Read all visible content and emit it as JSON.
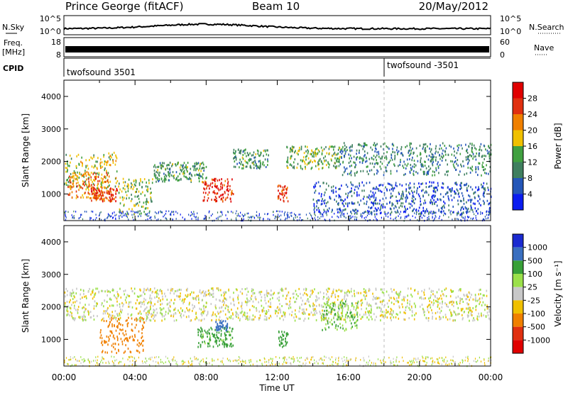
{
  "header": {
    "title": "Prince George (fitACF)",
    "beam": "Beam 10",
    "date": "20/May/2012"
  },
  "strip_labels": {
    "nsky": "N.Sky",
    "freq": "Freq.",
    "freq_unit": "[MHz]",
    "cpid": "CPID",
    "nsearch": "N.Search",
    "nave": "Nave",
    "nsky_ticks": [
      "10^5",
      "10^0"
    ],
    "nsearch_ticks": [
      "10^5",
      "10^0"
    ],
    "freq_ticks": [
      "18",
      "8"
    ],
    "nave_ticks": [
      "60",
      "0"
    ],
    "cpid_left": "twofsound 3501",
    "cpid_right": "twofsound -3501"
  },
  "colors": {
    "power": [
      "#0a1cf0",
      "#2456b8",
      "#3f7f5f",
      "#40a040",
      "#f0c000",
      "#f08000",
      "#e03010",
      "#e00000"
    ],
    "velocity": [
      "#e00000",
      "#e03010",
      "#f08000",
      "#f0c000",
      "#c8c8c8",
      "#9be04a",
      "#38a038",
      "#3a6fc0",
      "#1a2ad0"
    ]
  },
  "chart_data": [
    {
      "type": "heatmap",
      "title": "Power",
      "xlabel": "Time UT",
      "ylabel": "Slant Range [km]",
      "xlim_hours": [
        0,
        24
      ],
      "ylim_km": [
        180,
        4500
      ],
      "x_ticks": [
        "00:00",
        "04:00",
        "08:00",
        "12:00",
        "16:00",
        "20:00",
        "00:00"
      ],
      "y_ticks": [
        1000,
        2000,
        3000,
        4000
      ],
      "colorbar": {
        "label": "Power [dB]",
        "ticks": [
          4,
          8,
          12,
          16,
          20,
          24,
          28
        ]
      },
      "regions": [
        {
          "t0": 0.0,
          "t1": 3.0,
          "r0": 1200,
          "r1": 2300,
          "level": 16
        },
        {
          "t0": 0.2,
          "t1": 2.5,
          "r0": 900,
          "r1": 1700,
          "level": 22
        },
        {
          "t0": 1.5,
          "t1": 3.0,
          "r0": 800,
          "r1": 1200,
          "level": 26
        },
        {
          "t0": 3.0,
          "t1": 5.0,
          "r0": 400,
          "r1": 1500,
          "level": 14
        },
        {
          "t0": 5.0,
          "t1": 8.0,
          "r0": 1400,
          "r1": 2000,
          "level": 12
        },
        {
          "t0": 7.8,
          "t1": 9.5,
          "r0": 800,
          "r1": 1500,
          "level": 28
        },
        {
          "t0": 9.5,
          "t1": 11.5,
          "r0": 1800,
          "r1": 2400,
          "level": 12
        },
        {
          "t0": 12.0,
          "t1": 12.6,
          "r0": 800,
          "r1": 1300,
          "level": 26
        },
        {
          "t0": 12.5,
          "t1": 15.5,
          "r0": 1800,
          "r1": 2500,
          "level": 14
        },
        {
          "t0": 15.5,
          "t1": 24.0,
          "r0": 1600,
          "r1": 2600,
          "level": 10
        },
        {
          "t0": 14.0,
          "t1": 24.0,
          "r0": 400,
          "r1": 1400,
          "level": 6
        }
      ]
    },
    {
      "type": "heatmap",
      "title": "Velocity",
      "xlabel": "Time UT",
      "ylabel": "Slant Range [km]",
      "xlim_hours": [
        0,
        24
      ],
      "ylim_km": [
        180,
        4500
      ],
      "x_ticks": [
        "00:00",
        "04:00",
        "08:00",
        "12:00",
        "16:00",
        "20:00",
        "00:00"
      ],
      "y_ticks": [
        1000,
        2000,
        3000,
        4000
      ],
      "colorbar": {
        "label": "Velocity [m s⁻¹]",
        "ticks": [
          1000,
          500,
          100,
          25,
          -25,
          -100,
          -500,
          -1000
        ]
      },
      "regions": [
        {
          "t0": 0.0,
          "t1": 24.0,
          "r0": 1600,
          "r1": 2600,
          "level": 0
        },
        {
          "t0": 2.0,
          "t1": 4.5,
          "r0": 600,
          "r1": 1700,
          "level": -300
        },
        {
          "t0": 7.5,
          "t1": 9.5,
          "r0": 800,
          "r1": 1400,
          "level": 150
        },
        {
          "t0": 8.5,
          "t1": 9.2,
          "r0": 1300,
          "r1": 1600,
          "level": 800
        },
        {
          "t0": 12.0,
          "t1": 12.6,
          "r0": 800,
          "r1": 1300,
          "level": 300
        },
        {
          "t0": 14.5,
          "t1": 16.5,
          "r0": 1300,
          "r1": 2200,
          "level": 100
        }
      ]
    }
  ]
}
